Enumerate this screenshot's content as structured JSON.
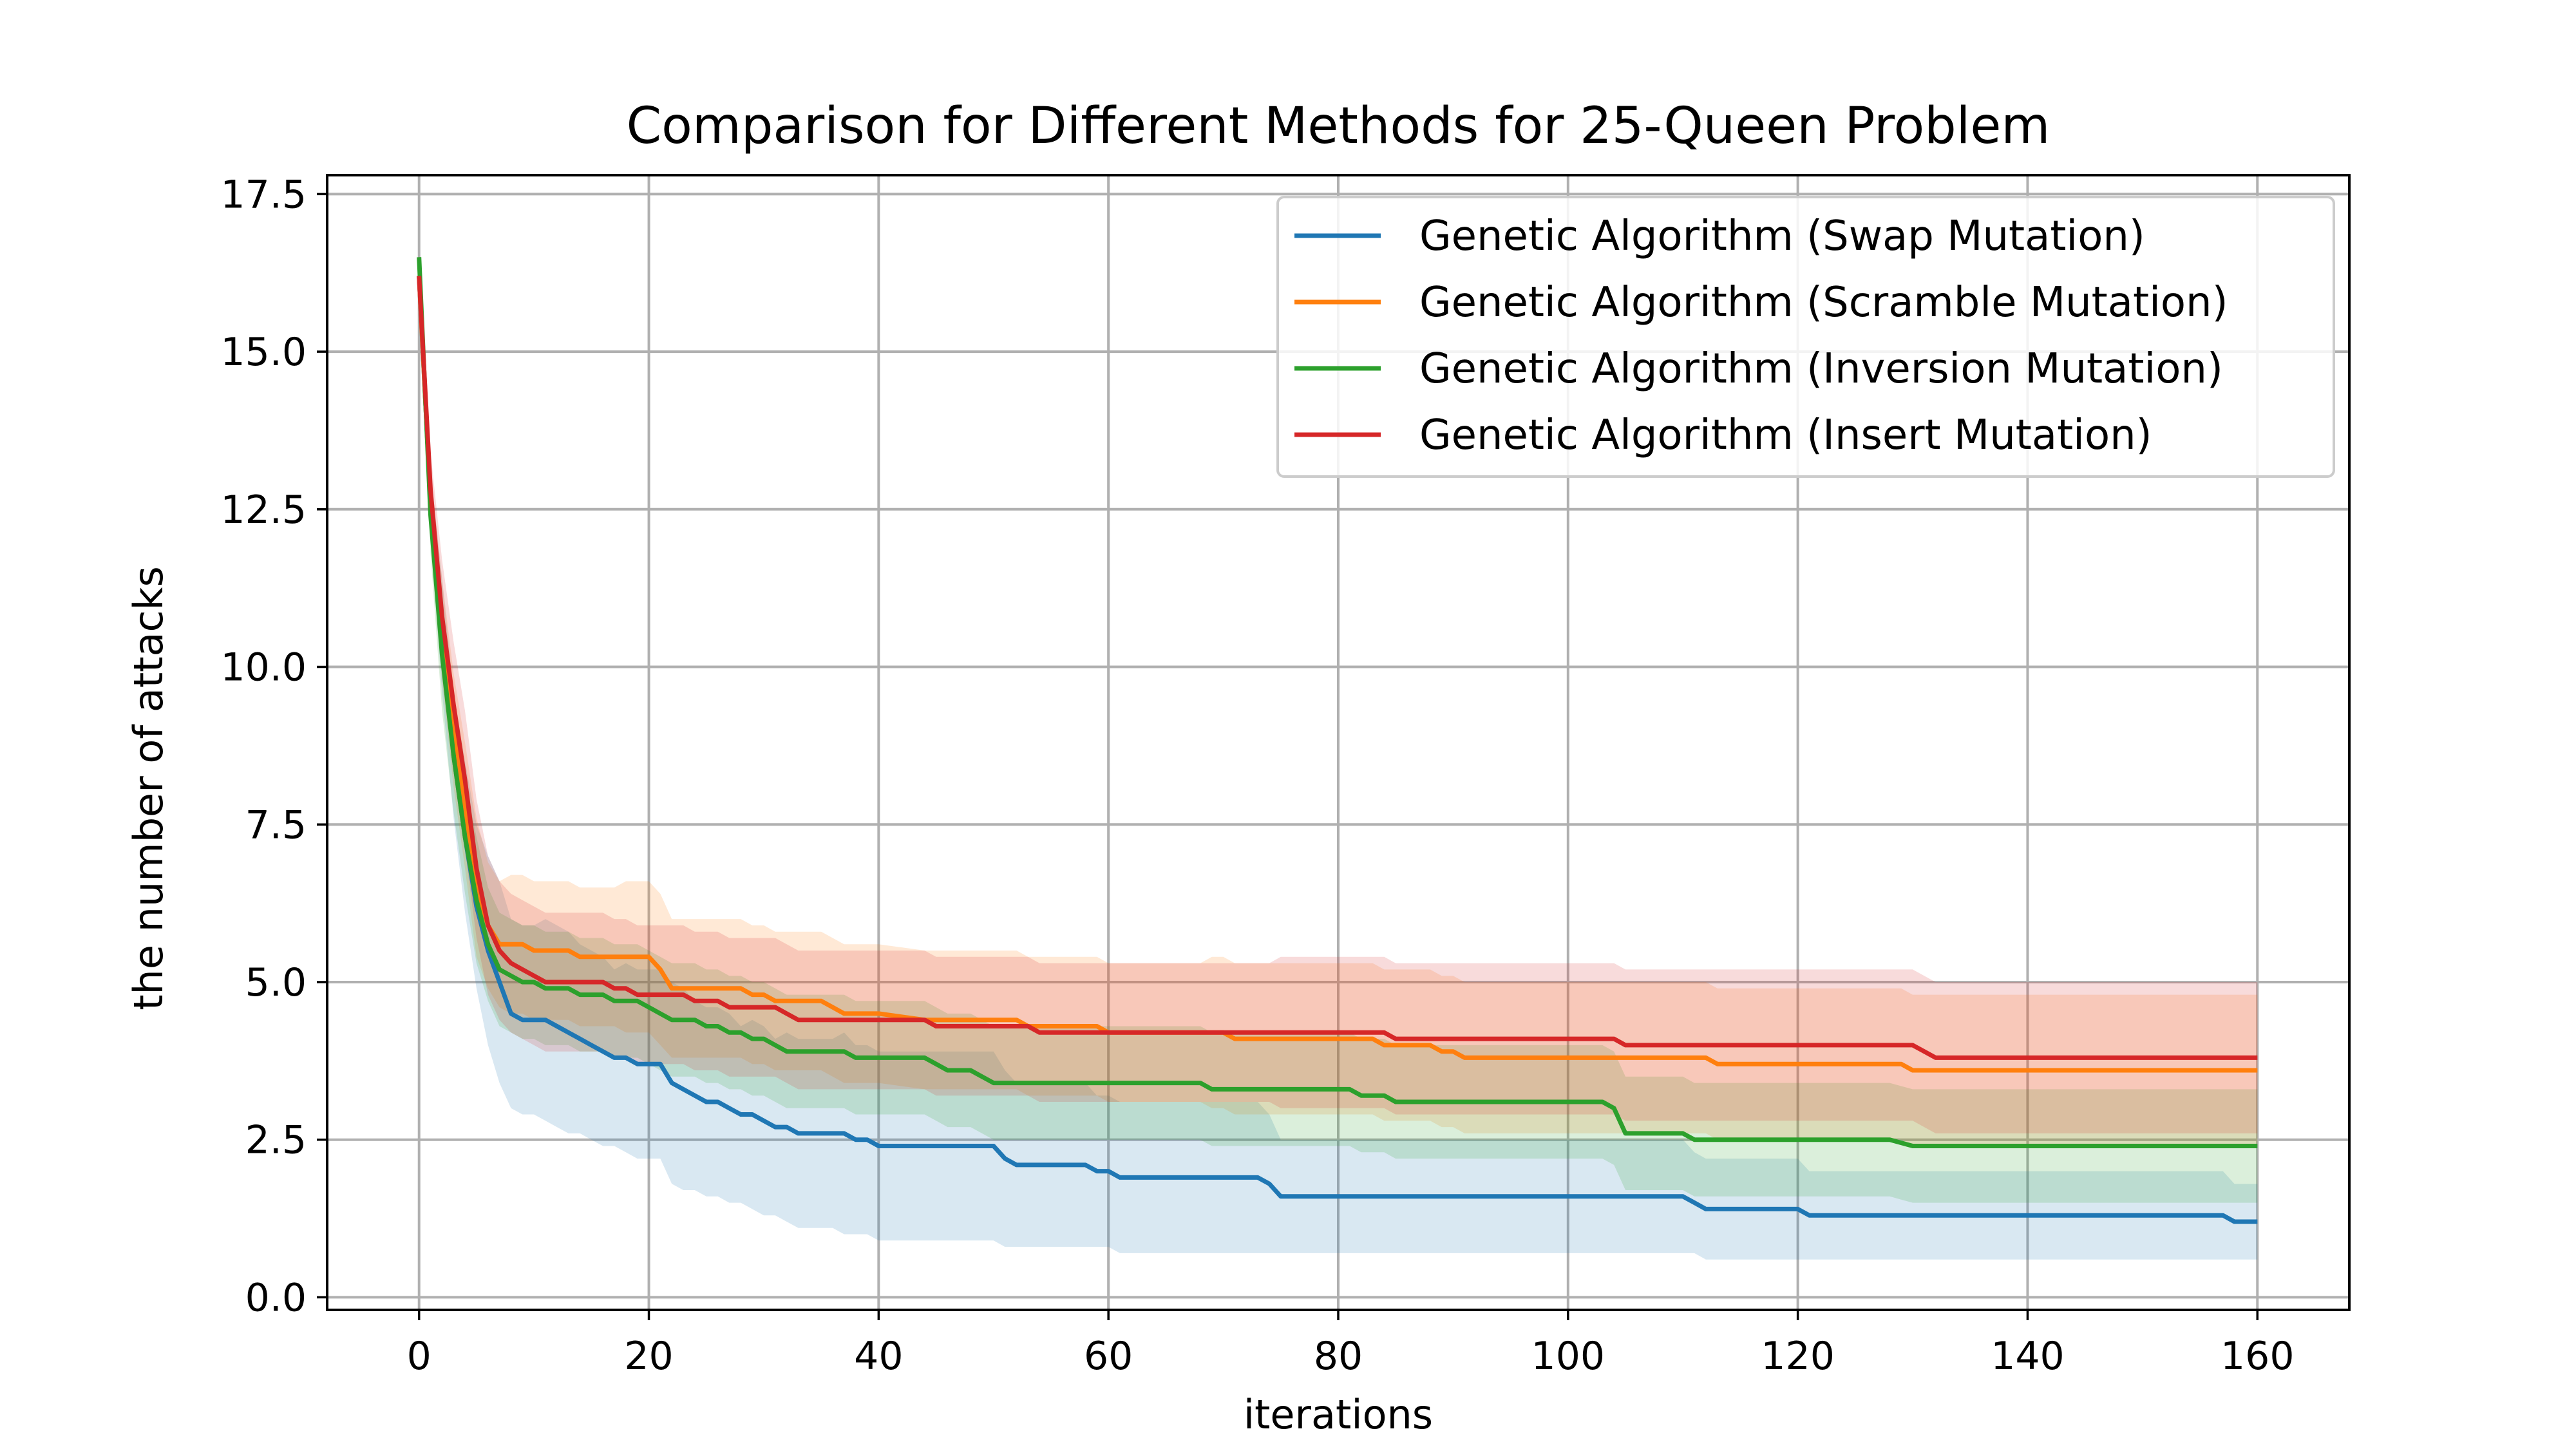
{
  "chart_data": {
    "type": "line",
    "title": "Comparison for Different Methods for 25-Queen Problem",
    "xlabel": "iterations",
    "ylabel": "the number of attacks",
    "xlim": [
      -8,
      168
    ],
    "ylim": [
      -0.2,
      17.8
    ],
    "xticks": [
      0,
      20,
      40,
      60,
      80,
      100,
      120,
      140,
      160
    ],
    "yticks": [
      0.0,
      2.5,
      5.0,
      7.5,
      10.0,
      12.5,
      15.0,
      17.5
    ],
    "ytick_labels": [
      "0.0",
      "2.5",
      "5.0",
      "7.5",
      "10.0",
      "12.5",
      "15.0",
      "17.5"
    ],
    "grid": true,
    "legend_position": "upper right",
    "series": [
      {
        "name": "Genetic Algorithm (Swap Mutation)",
        "color": "#1f77b4",
        "x": [
          0,
          1,
          2,
          3,
          4,
          5,
          6,
          7,
          8,
          9,
          10,
          11,
          12,
          13,
          14,
          15,
          16,
          17,
          18,
          19,
          20,
          21,
          22,
          23,
          24,
          25,
          26,
          27,
          28,
          29,
          30,
          31,
          32,
          33,
          34,
          35,
          36,
          37,
          38,
          39,
          40,
          44,
          48,
          50,
          51,
          52,
          53,
          58,
          59,
          60,
          61,
          73,
          74,
          75,
          76,
          110,
          111,
          112,
          119,
          120,
          121,
          157,
          158,
          160
        ],
        "y": [
          16.2,
          12.6,
          10.5,
          8.6,
          7.3,
          6.2,
          5.5,
          5.0,
          4.5,
          4.4,
          4.4,
          4.4,
          4.3,
          4.2,
          4.1,
          4.0,
          3.9,
          3.8,
          3.8,
          3.7,
          3.7,
          3.7,
          3.4,
          3.3,
          3.2,
          3.1,
          3.1,
          3.0,
          2.9,
          2.9,
          2.8,
          2.7,
          2.7,
          2.6,
          2.6,
          2.6,
          2.6,
          2.6,
          2.5,
          2.5,
          2.4,
          2.4,
          2.4,
          2.4,
          2.2,
          2.1,
          2.1,
          2.1,
          2.0,
          2.0,
          1.9,
          1.9,
          1.8,
          1.6,
          1.6,
          1.6,
          1.5,
          1.4,
          1.4,
          1.4,
          1.3,
          1.3,
          1.2,
          1.2
        ],
        "lower": [
          16.2,
          12.1,
          9.6,
          7.6,
          6.1,
          4.9,
          4.0,
          3.4,
          3.0,
          2.9,
          2.9,
          2.8,
          2.7,
          2.6,
          2.6,
          2.5,
          2.4,
          2.4,
          2.3,
          2.2,
          2.2,
          2.2,
          1.8,
          1.7,
          1.7,
          1.6,
          1.6,
          1.5,
          1.5,
          1.4,
          1.3,
          1.3,
          1.2,
          1.1,
          1.1,
          1.1,
          1.1,
          1.0,
          1.0,
          1.0,
          0.9,
          0.9,
          0.9,
          0.9,
          0.8,
          0.8,
          0.8,
          0.8,
          0.8,
          0.8,
          0.7,
          0.7,
          0.7,
          0.7,
          0.7,
          0.7,
          0.7,
          0.6,
          0.6,
          0.6,
          0.6,
          0.6,
          0.6,
          0.6
        ],
        "upper": [
          16.2,
          13.1,
          11.4,
          9.6,
          8.5,
          7.5,
          7.0,
          6.6,
          6.0,
          5.9,
          5.9,
          6.0,
          5.9,
          5.8,
          5.6,
          5.5,
          5.4,
          5.2,
          5.3,
          5.2,
          5.2,
          5.2,
          5.0,
          4.9,
          4.7,
          4.6,
          4.6,
          4.5,
          4.3,
          4.4,
          4.3,
          4.1,
          4.2,
          4.1,
          4.1,
          4.1,
          4.1,
          4.2,
          4.0,
          4.0,
          3.9,
          3.9,
          3.9,
          3.9,
          3.6,
          3.4,
          3.4,
          3.4,
          3.2,
          3.2,
          3.1,
          3.1,
          2.9,
          2.5,
          2.5,
          2.5,
          2.3,
          2.2,
          2.2,
          2.2,
          2.0,
          2.0,
          1.8,
          1.8
        ]
      },
      {
        "name": "Genetic Algorithm (Scramble Mutation)",
        "color": "#ff7f0e",
        "x": [
          0,
          1,
          2,
          3,
          4,
          5,
          6,
          7,
          8,
          9,
          10,
          11,
          12,
          13,
          14,
          15,
          16,
          17,
          18,
          19,
          20,
          21,
          22,
          23,
          24,
          25,
          26,
          27,
          28,
          29,
          30,
          31,
          32,
          33,
          34,
          35,
          36,
          37,
          38,
          39,
          40,
          44,
          50,
          52,
          53,
          58,
          59,
          60,
          61,
          68,
          69,
          70,
          71,
          83,
          84,
          85,
          88,
          89,
          90,
          91,
          111,
          112,
          113,
          128,
          129,
          130,
          160
        ],
        "y": [
          16.2,
          12.6,
          10.6,
          9.0,
          7.8,
          6.5,
          5.9,
          5.6,
          5.6,
          5.6,
          5.5,
          5.5,
          5.5,
          5.5,
          5.4,
          5.4,
          5.4,
          5.4,
          5.4,
          5.4,
          5.4,
          5.2,
          4.9,
          4.9,
          4.9,
          4.9,
          4.9,
          4.9,
          4.9,
          4.8,
          4.8,
          4.7,
          4.7,
          4.7,
          4.7,
          4.7,
          4.6,
          4.5,
          4.5,
          4.5,
          4.5,
          4.4,
          4.4,
          4.4,
          4.3,
          4.3,
          4.3,
          4.2,
          4.2,
          4.2,
          4.2,
          4.2,
          4.1,
          4.1,
          4.0,
          4.0,
          4.0,
          3.9,
          3.9,
          3.8,
          3.8,
          3.8,
          3.7,
          3.7,
          3.7,
          3.6,
          3.6
        ],
        "lower": [
          16.2,
          12.1,
          9.8,
          8.1,
          6.8,
          5.4,
          4.9,
          4.6,
          4.5,
          4.5,
          4.4,
          4.4,
          4.4,
          4.4,
          4.3,
          4.3,
          4.3,
          4.3,
          4.2,
          4.2,
          4.2,
          4.0,
          3.8,
          3.8,
          3.8,
          3.8,
          3.8,
          3.8,
          3.8,
          3.7,
          3.7,
          3.6,
          3.6,
          3.6,
          3.6,
          3.6,
          3.5,
          3.4,
          3.4,
          3.4,
          3.4,
          3.3,
          3.3,
          3.3,
          3.2,
          3.2,
          3.2,
          3.1,
          3.1,
          3.1,
          3.0,
          3.0,
          2.9,
          2.9,
          2.8,
          2.8,
          2.8,
          2.7,
          2.7,
          2.6,
          2.6,
          2.6,
          2.5,
          2.5,
          2.5,
          2.4,
          2.4
        ],
        "upper": [
          16.2,
          13.1,
          11.4,
          9.9,
          8.8,
          7.6,
          6.9,
          6.6,
          6.7,
          6.7,
          6.6,
          6.6,
          6.6,
          6.6,
          6.5,
          6.5,
          6.5,
          6.5,
          6.6,
          6.6,
          6.6,
          6.4,
          6.0,
          6.0,
          6.0,
          6.0,
          6.0,
          6.0,
          6.0,
          5.9,
          5.9,
          5.8,
          5.8,
          5.8,
          5.8,
          5.8,
          5.7,
          5.6,
          5.6,
          5.6,
          5.6,
          5.5,
          5.5,
          5.5,
          5.4,
          5.4,
          5.4,
          5.3,
          5.3,
          5.3,
          5.4,
          5.4,
          5.3,
          5.3,
          5.2,
          5.2,
          5.2,
          5.1,
          5.1,
          5.0,
          5.0,
          5.0,
          4.9,
          4.9,
          4.9,
          4.8,
          4.8
        ]
      },
      {
        "name": "Genetic Algorithm (Inversion Mutation)",
        "color": "#2ca02c",
        "x": [
          0,
          1,
          2,
          3,
          4,
          5,
          6,
          7,
          8,
          9,
          10,
          11,
          12,
          13,
          14,
          15,
          16,
          17,
          18,
          19,
          20,
          21,
          22,
          23,
          24,
          25,
          26,
          27,
          28,
          29,
          30,
          31,
          32,
          33,
          34,
          35,
          36,
          37,
          38,
          39,
          40,
          44,
          45,
          46,
          47,
          48,
          49,
          50,
          68,
          69,
          70,
          79,
          80,
          81,
          82,
          83,
          84,
          85,
          103,
          104,
          105,
          110,
          111,
          112,
          127,
          128,
          129,
          130,
          160
        ],
        "y": [
          16.5,
          12.4,
          10.2,
          8.6,
          7.3,
          6.3,
          5.6,
          5.2,
          5.1,
          5.0,
          5.0,
          4.9,
          4.9,
          4.9,
          4.8,
          4.8,
          4.8,
          4.7,
          4.7,
          4.7,
          4.6,
          4.5,
          4.4,
          4.4,
          4.4,
          4.3,
          4.3,
          4.2,
          4.2,
          4.1,
          4.1,
          4.0,
          3.9,
          3.9,
          3.9,
          3.9,
          3.9,
          3.9,
          3.8,
          3.8,
          3.8,
          3.8,
          3.7,
          3.6,
          3.6,
          3.6,
          3.5,
          3.4,
          3.4,
          3.3,
          3.3,
          3.3,
          3.3,
          3.3,
          3.2,
          3.2,
          3.2,
          3.1,
          3.1,
          3.0,
          2.6,
          2.6,
          2.5,
          2.5,
          2.5,
          2.5,
          2.45,
          2.4,
          2.4
        ],
        "lower": [
          16.5,
          11.8,
          9.3,
          7.7,
          6.4,
          5.3,
          4.7,
          4.3,
          4.2,
          4.1,
          4.1,
          4.0,
          4.0,
          4.0,
          3.9,
          3.9,
          3.9,
          3.8,
          3.8,
          3.8,
          3.7,
          3.6,
          3.5,
          3.5,
          3.5,
          3.4,
          3.4,
          3.3,
          3.3,
          3.2,
          3.2,
          3.1,
          3.0,
          3.0,
          3.0,
          3.0,
          3.0,
          3.0,
          2.9,
          2.9,
          2.9,
          2.9,
          2.8,
          2.7,
          2.7,
          2.7,
          2.6,
          2.5,
          2.5,
          2.4,
          2.4,
          2.4,
          2.4,
          2.4,
          2.3,
          2.3,
          2.3,
          2.2,
          2.2,
          2.1,
          1.7,
          1.7,
          1.6,
          1.6,
          1.6,
          1.6,
          1.55,
          1.5,
          1.5
        ],
        "upper": [
          16.5,
          13.0,
          11.1,
          9.5,
          8.2,
          7.3,
          6.5,
          6.1,
          6.0,
          5.9,
          5.9,
          5.8,
          5.8,
          5.8,
          5.7,
          5.7,
          5.7,
          5.6,
          5.6,
          5.6,
          5.5,
          5.4,
          5.3,
          5.3,
          5.3,
          5.2,
          5.2,
          5.1,
          5.1,
          5.0,
          5.0,
          4.9,
          4.8,
          4.8,
          4.8,
          4.8,
          4.8,
          4.8,
          4.7,
          4.7,
          4.7,
          4.7,
          4.6,
          4.5,
          4.5,
          4.5,
          4.4,
          4.3,
          4.3,
          4.2,
          4.2,
          4.2,
          4.2,
          4.2,
          4.1,
          4.1,
          4.1,
          4.0,
          4.0,
          3.9,
          3.5,
          3.5,
          3.4,
          3.4,
          3.4,
          3.4,
          3.35,
          3.3,
          3.3
        ]
      },
      {
        "name": "Genetic Algorithm (Insert Mutation)",
        "color": "#d62728",
        "x": [
          0,
          1,
          2,
          3,
          4,
          5,
          6,
          7,
          8,
          9,
          10,
          11,
          12,
          13,
          14,
          15,
          16,
          17,
          18,
          19,
          20,
          21,
          22,
          23,
          24,
          25,
          26,
          27,
          28,
          29,
          30,
          31,
          32,
          33,
          34,
          35,
          36,
          44,
          45,
          53,
          54,
          74,
          75,
          84,
          85,
          104,
          105,
          130,
          131,
          132,
          160
        ],
        "y": [
          16.2,
          12.8,
          10.8,
          9.4,
          8.2,
          6.8,
          5.9,
          5.5,
          5.3,
          5.2,
          5.1,
          5.0,
          5.0,
          5.0,
          5.0,
          5.0,
          5.0,
          4.9,
          4.9,
          4.8,
          4.8,
          4.8,
          4.8,
          4.8,
          4.7,
          4.7,
          4.7,
          4.6,
          4.6,
          4.6,
          4.6,
          4.6,
          4.5,
          4.4,
          4.4,
          4.4,
          4.4,
          4.4,
          4.3,
          4.3,
          4.2,
          4.2,
          4.2,
          4.2,
          4.1,
          4.1,
          4.0,
          4.0,
          3.9,
          3.8,
          3.8
        ],
        "lower": [
          16.2,
          12.2,
          9.9,
          8.4,
          7.1,
          5.7,
          4.8,
          4.4,
          4.2,
          4.1,
          4.0,
          3.9,
          3.9,
          3.9,
          3.9,
          3.9,
          3.9,
          3.8,
          3.8,
          3.7,
          3.7,
          3.7,
          3.7,
          3.7,
          3.6,
          3.6,
          3.6,
          3.5,
          3.5,
          3.5,
          3.5,
          3.5,
          3.4,
          3.3,
          3.3,
          3.3,
          3.3,
          3.3,
          3.2,
          3.2,
          3.1,
          3.1,
          3.0,
          3.0,
          2.9,
          2.9,
          2.8,
          2.8,
          2.7,
          2.6,
          2.6
        ],
        "upper": [
          16.2,
          13.4,
          11.7,
          10.4,
          9.3,
          7.9,
          7.0,
          6.6,
          6.4,
          6.3,
          6.2,
          6.1,
          6.1,
          6.1,
          6.1,
          6.1,
          6.1,
          6.0,
          6.0,
          5.9,
          5.9,
          5.9,
          5.9,
          5.9,
          5.8,
          5.8,
          5.8,
          5.7,
          5.7,
          5.7,
          5.7,
          5.7,
          5.6,
          5.5,
          5.5,
          5.5,
          5.5,
          5.5,
          5.4,
          5.4,
          5.3,
          5.3,
          5.4,
          5.4,
          5.3,
          5.3,
          5.2,
          5.2,
          5.1,
          5.0,
          5.0
        ]
      }
    ]
  }
}
